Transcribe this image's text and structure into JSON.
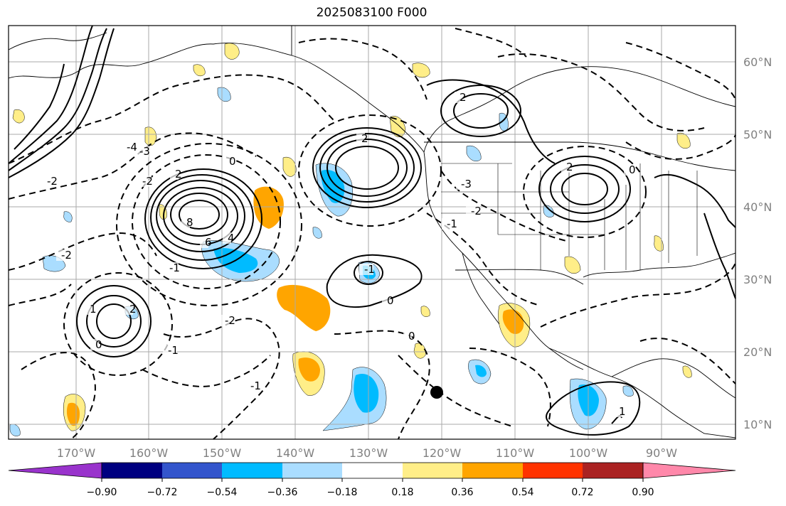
{
  "title": "2025083100 F000",
  "map": {
    "lon_ticks": [
      "170°W",
      "160°W",
      "150°W",
      "140°W",
      "130°W",
      "120°W",
      "110°W",
      "100°W",
      "90°W"
    ],
    "lat_ticks": [
      "60°N",
      "50°N",
      "40°N",
      "30°N",
      "20°N",
      "10°N"
    ],
    "colors": {
      "warm_light": "#ffee88",
      "warm_mid": "#ffa500",
      "cool_light": "#aaddff",
      "cool_mid": "#00bbff",
      "contour": "#000000",
      "grid": "#aaaaaa",
      "land": "#ffffff",
      "storm_marker": "#000000"
    },
    "contour_labels": [
      {
        "text": "8"
      },
      {
        "text": "6"
      },
      {
        "text": "4"
      },
      {
        "text": "2"
      },
      {
        "text": "0"
      },
      {
        "text": "-1"
      },
      {
        "text": "-2"
      },
      {
        "text": "-3"
      },
      {
        "text": "-4"
      },
      {
        "text": "1"
      },
      {
        "text": "2"
      },
      {
        "text": "-2"
      },
      {
        "text": "2"
      },
      {
        "text": "0"
      },
      {
        "text": "-1"
      },
      {
        "text": "0"
      },
      {
        "text": "-1"
      },
      {
        "text": "2"
      },
      {
        "text": "-2"
      },
      {
        "text": "-3"
      },
      {
        "text": "2"
      },
      {
        "text": "0"
      },
      {
        "text": "-1"
      },
      {
        "text": "-2"
      },
      {
        "text": "0"
      },
      {
        "text": "-1"
      },
      {
        "text": "1"
      },
      {
        "text": "-2"
      }
    ]
  },
  "colorbar": {
    "labels": [
      "−0.90",
      "−0.72",
      "−0.54",
      "−0.36",
      "−0.18",
      "0.18",
      "0.36",
      "0.54",
      "0.72",
      "0.90"
    ],
    "colors": [
      "#9933cc",
      "#000080",
      "#3355cc",
      "#00bbff",
      "#aaddff",
      "#ffffff",
      "#ffee88",
      "#ffa500",
      "#ff3300",
      "#aa2222",
      "#ff88aa"
    ]
  }
}
